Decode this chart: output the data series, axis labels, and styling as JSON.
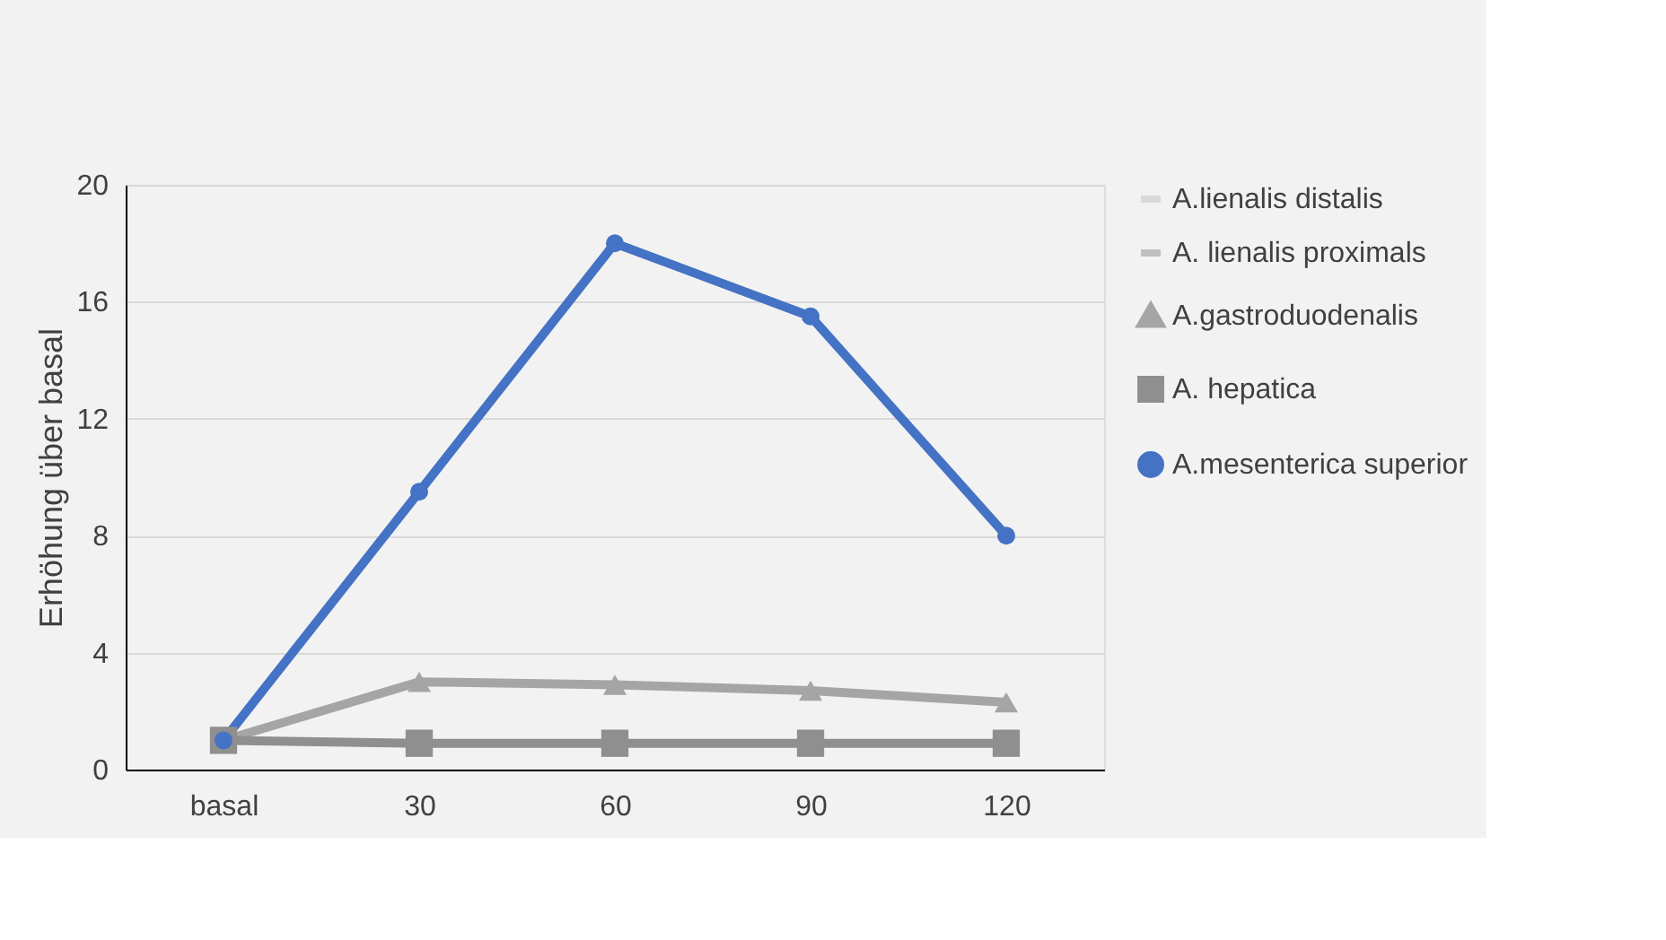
{
  "chart_data": {
    "type": "line",
    "ylabel": "Erhöhung über basal",
    "categories": [
      "basal",
      "30",
      "60",
      "90",
      "120"
    ],
    "series": [
      {
        "name": "A.lienalis distalis",
        "color": "#d9d9d9",
        "marker": "none",
        "values": [
          null,
          null,
          null,
          null,
          null
        ]
      },
      {
        "name": "A. lienalis proximals",
        "color": "#bfbfbf",
        "marker": "none",
        "values": [
          null,
          null,
          null,
          null,
          null
        ]
      },
      {
        "name": "A.gastroduodenalis",
        "color": "#a5a5a5",
        "marker": "triangle",
        "values": [
          1,
          3.0,
          2.9,
          2.7,
          2.3
        ]
      },
      {
        "name": "A. hepatica",
        "color": "#8f8f8f",
        "marker": "square",
        "values": [
          1,
          0.9,
          0.9,
          0.9,
          0.9
        ]
      },
      {
        "name": "A.mesenterica superior",
        "color": "#4472c4",
        "marker": "circle",
        "values": [
          1,
          9.5,
          18,
          15.5,
          8
        ]
      }
    ],
    "ylim": [
      0,
      20
    ],
    "yticks": [
      0,
      4,
      8,
      12,
      16,
      20
    ],
    "grid": "y",
    "legend": "right"
  }
}
